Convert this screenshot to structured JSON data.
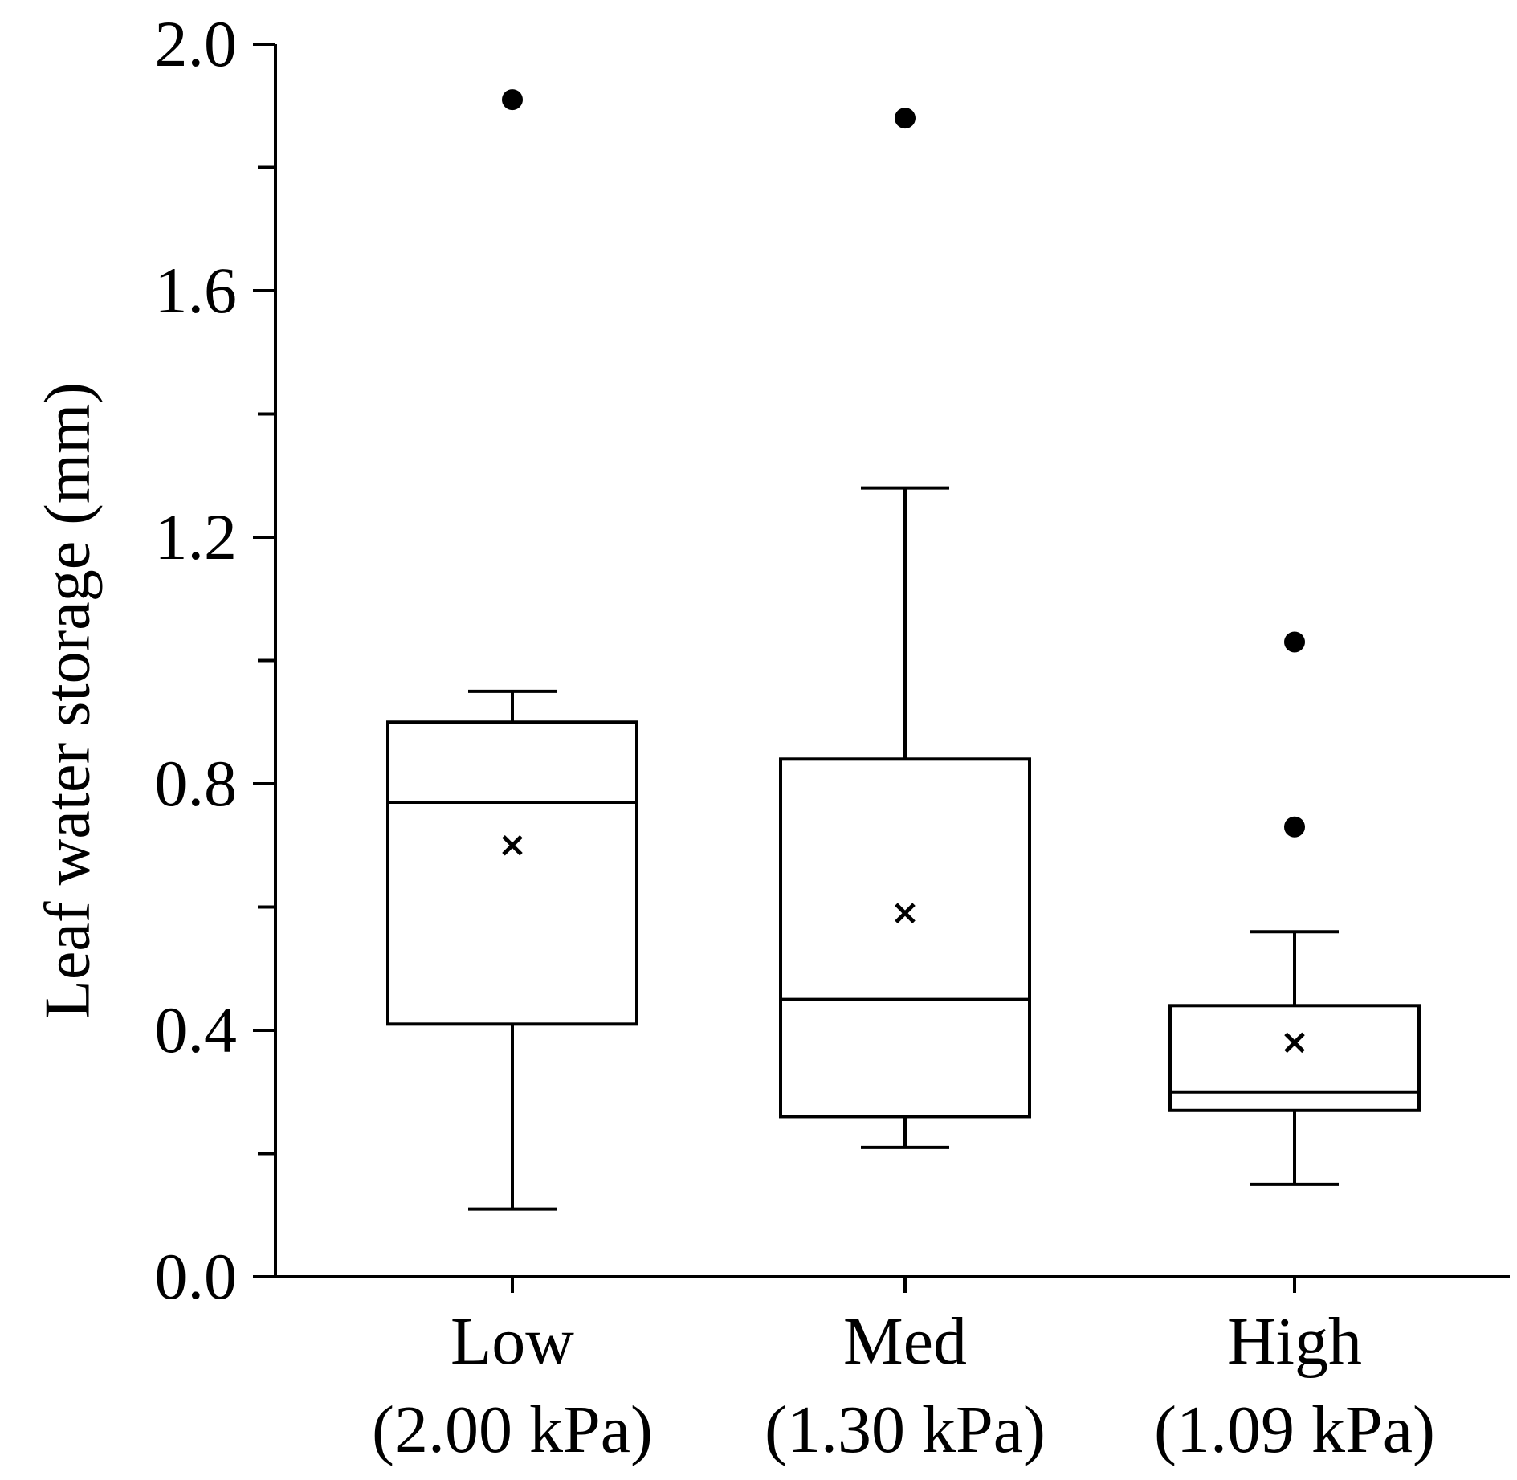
{
  "chart_data": {
    "type": "box",
    "title": "",
    "xlabel": "",
    "ylabel": "Leaf water storage (mm)",
    "ylim": [
      0.0,
      2.0
    ],
    "yticks_major": [
      "0.0",
      "0.4",
      "0.8",
      "1.2",
      "1.6",
      "2.0"
    ],
    "ytick_values_major": [
      0.0,
      0.4,
      0.8,
      1.2,
      1.6,
      2.0
    ],
    "ytick_values_minor": [
      0.2,
      0.6,
      1.0,
      1.4,
      1.8
    ],
    "categories": [
      {
        "name": "Low",
        "sub": "(2.00 kPa)"
      },
      {
        "name": "Med",
        "sub": "(1.30 kPa)"
      },
      {
        "name": "High",
        "sub": "(1.09 kPa)"
      }
    ],
    "boxes": [
      {
        "category": "Low",
        "whisker_low": 0.11,
        "q1": 0.41,
        "median": 0.77,
        "q3": 0.9,
        "whisker_high": 0.95,
        "mean": 0.7,
        "outliers": [
          1.91
        ]
      },
      {
        "category": "Med",
        "whisker_low": 0.21,
        "q1": 0.26,
        "median": 0.45,
        "q3": 0.84,
        "whisker_high": 1.28,
        "mean": 0.59,
        "outliers": [
          1.88
        ]
      },
      {
        "category": "High",
        "whisker_low": 0.15,
        "q1": 0.27,
        "median": 0.3,
        "q3": 0.44,
        "whisker_high": 0.56,
        "mean": 0.38,
        "outliers": [
          0.73,
          1.03
        ]
      }
    ],
    "colors": {
      "stroke": "#000000",
      "fill": "#ffffff",
      "marker": "#000000"
    }
  }
}
